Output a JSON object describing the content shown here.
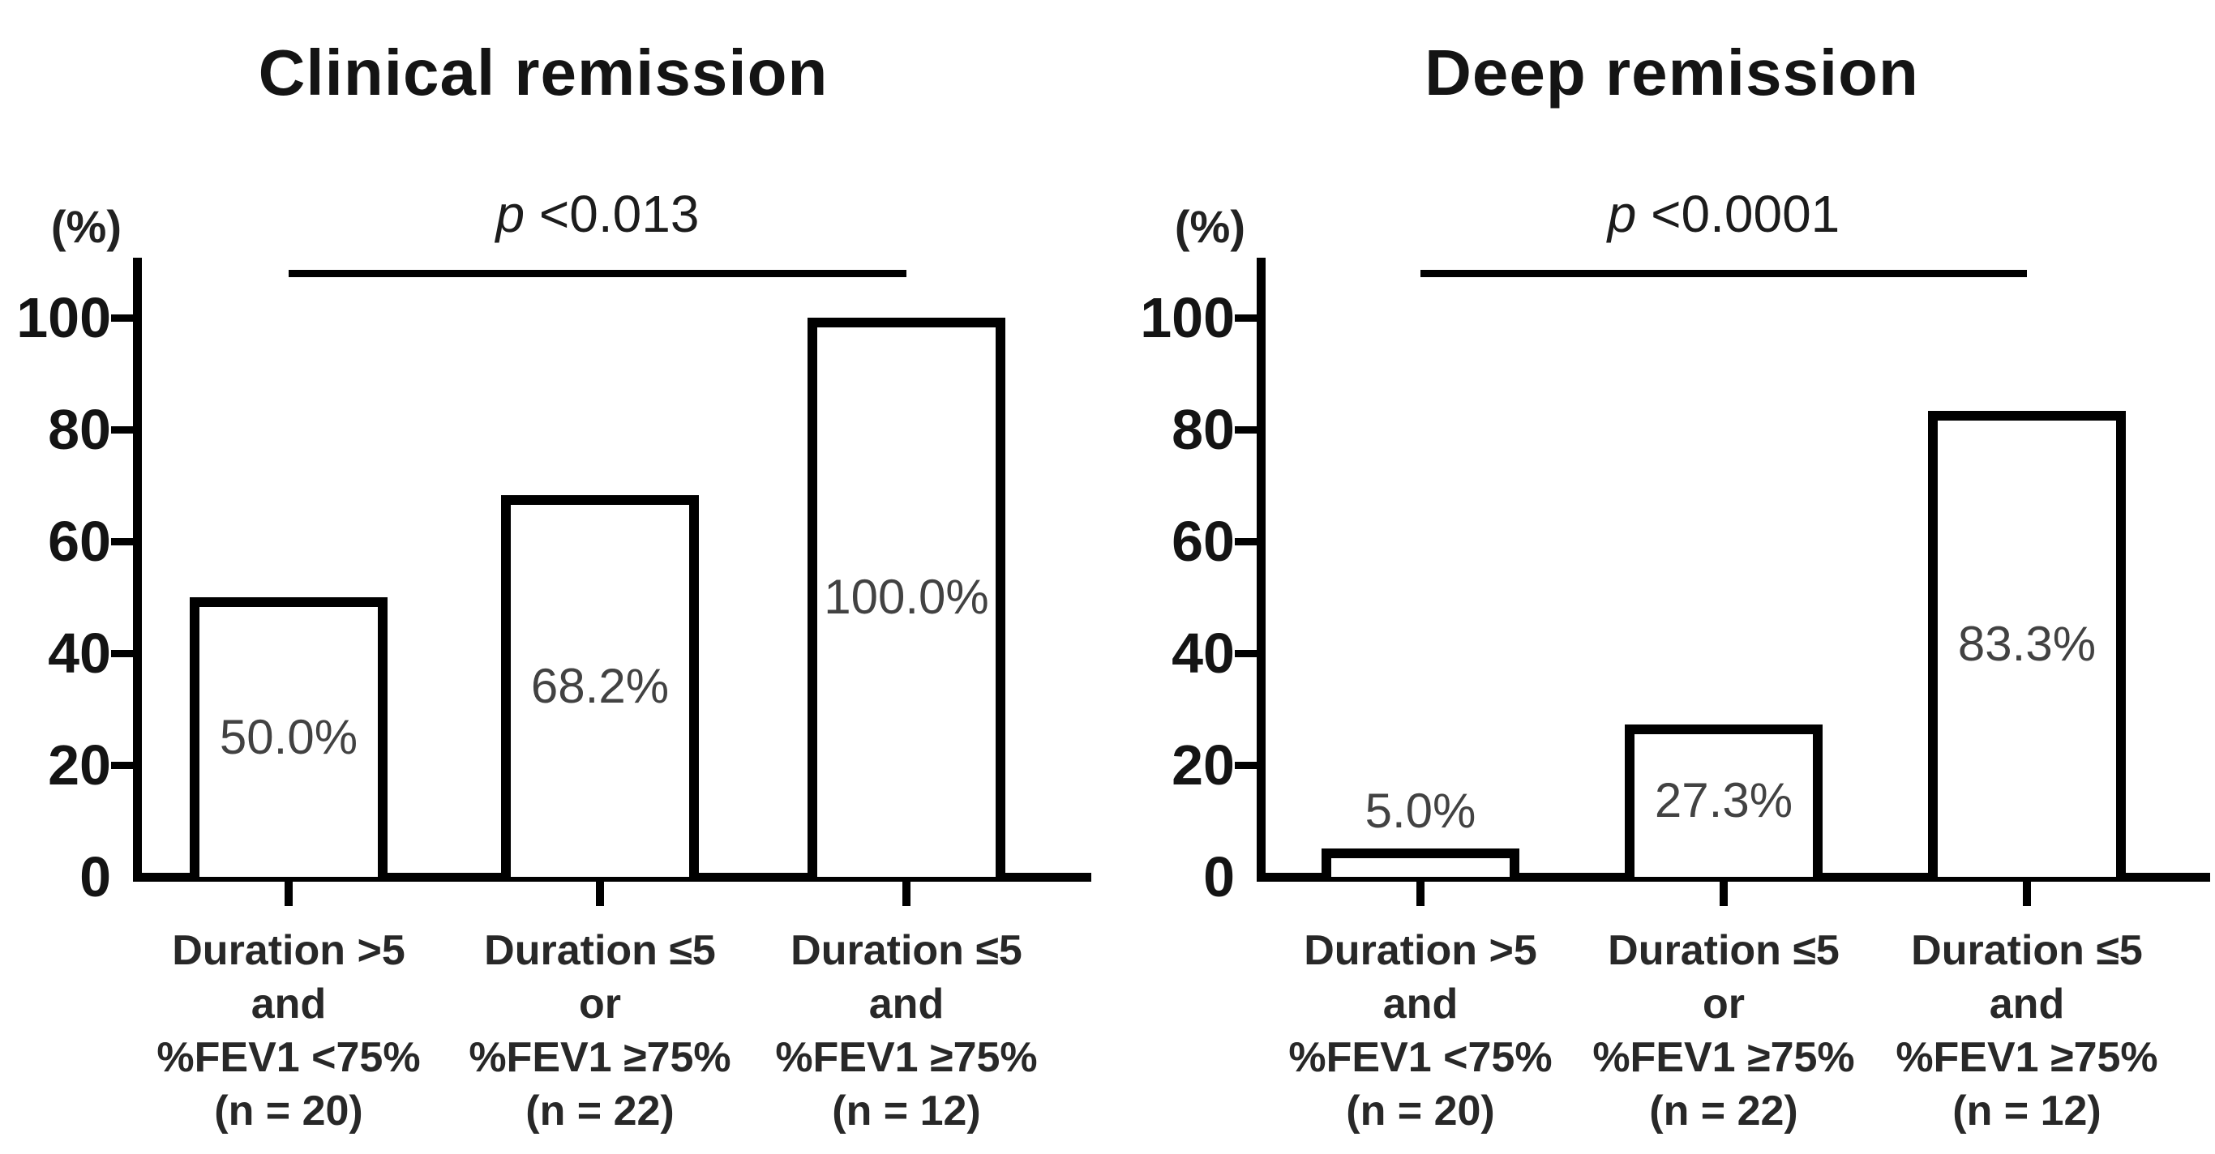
{
  "figure": {
    "background": "#ffffff",
    "description_left_title": "Clinical remission",
    "description_right_title": "Deep remission"
  },
  "colors": {
    "axis": "#000000",
    "bar_fill": "#ffffff",
    "bar_border": "#000000",
    "title_text": "#141414",
    "tick_text": "#141414",
    "value_label_text": "#424242",
    "category_text": "#282828"
  },
  "chart_data": [
    {
      "type": "bar",
      "title": "Clinical remission",
      "ylabel": "(%)",
      "ylim": [
        0,
        110
      ],
      "yticks": [
        0,
        20,
        40,
        60,
        80,
        100
      ],
      "grid": "off",
      "legend": "none",
      "categories": [
        "Duration >5\nand\n%FEV1 <75%\n(n = 20)",
        "Duration ≤5\nor\n%FEV1 ≥75%\n(n = 22)",
        "Duration ≤5\nand\n%FEV1 ≥75%\n(n = 12)"
      ],
      "sample_sizes": [
        20,
        22,
        12
      ],
      "values": [
        50.0,
        68.2,
        100.0
      ],
      "value_labels": [
        "50.0%",
        "68.2%",
        "100.0%"
      ],
      "comparison": {
        "from_index": 0,
        "to_index": 2,
        "p_symbol": "p",
        "p_text": " <0.013"
      }
    },
    {
      "type": "bar",
      "title": "Deep remission",
      "ylabel": "(%)",
      "ylim": [
        0,
        110
      ],
      "yticks": [
        0,
        20,
        40,
        60,
        80,
        100
      ],
      "grid": "off",
      "legend": "none",
      "categories": [
        "Duration >5\nand\n%FEV1 <75%\n(n = 20)",
        "Duration ≤5\nor\n%FEV1 ≥75%\n(n = 22)",
        "Duration ≤5\nand\n%FEV1 ≥75%\n(n = 12)"
      ],
      "sample_sizes": [
        20,
        22,
        12
      ],
      "values": [
        5.0,
        27.3,
        83.3
      ],
      "value_labels": [
        "5.0%",
        "27.3%",
        "83.3%"
      ],
      "comparison": {
        "from_index": 0,
        "to_index": 2,
        "p_symbol": "p",
        "p_text": " <0.0001"
      }
    }
  ]
}
